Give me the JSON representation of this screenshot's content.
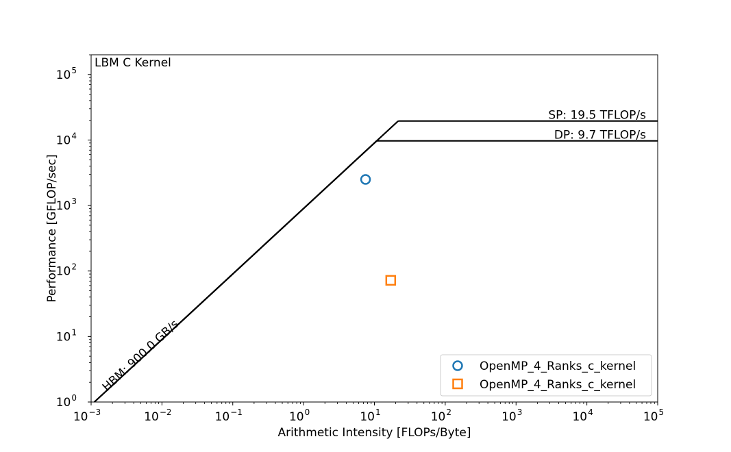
{
  "chart_data": {
    "type": "scatter",
    "title": "",
    "annotation": "LBM C Kernel",
    "xlabel": "Arithmetic Intensity [FLOPs/Byte]",
    "ylabel": "Performance [GFLOP/sec]",
    "xscale": "log",
    "yscale": "log",
    "xlim": [
      0.001,
      100000
    ],
    "ylim": [
      1,
      200000
    ],
    "x_ticks": [
      {
        "base": "10",
        "exp": "−3",
        "value": 0.001
      },
      {
        "base": "10",
        "exp": "−2",
        "value": 0.01
      },
      {
        "base": "10",
        "exp": "−1",
        "value": 0.1
      },
      {
        "base": "10",
        "exp": "0",
        "value": 1
      },
      {
        "base": "10",
        "exp": "1",
        "value": 10
      },
      {
        "base": "10",
        "exp": "2",
        "value": 100
      },
      {
        "base": "10",
        "exp": "3",
        "value": 1000
      },
      {
        "base": "10",
        "exp": "4",
        "value": 10000
      },
      {
        "base": "10",
        "exp": "5",
        "value": 100000
      }
    ],
    "y_ticks": [
      {
        "base": "10",
        "exp": "0",
        "value": 1
      },
      {
        "base": "10",
        "exp": "1",
        "value": 10
      },
      {
        "base": "10",
        "exp": "2",
        "value": 100
      },
      {
        "base": "10",
        "exp": "3",
        "value": 1000
      },
      {
        "base": "10",
        "exp": "4",
        "value": 10000
      },
      {
        "base": "10",
        "exp": "5",
        "value": 100000
      }
    ],
    "roofs": [
      {
        "label": "SP: 19.5 TFLOP/s",
        "peak": 19500,
        "bandwidth": 900
      },
      {
        "label": "DP: 9.7 TFLOP/s",
        "peak": 9700,
        "bandwidth": 900
      }
    ],
    "bandwidth_line": {
      "label": "HBM: 900.0 GB/s",
      "value": 900
    },
    "series": [
      {
        "name": "OpenMP_4_Ranks_c_kernel",
        "marker": "circle",
        "color": "#1f77b4",
        "points": [
          {
            "x": 7.5,
            "y": 2500
          }
        ]
      },
      {
        "name": "OpenMP_4_Ranks_c_kernel",
        "marker": "square",
        "color": "#ff7f0e",
        "points": [
          {
            "x": 17,
            "y": 72
          }
        ]
      }
    ],
    "grid": false,
    "legend_position": "lower-right"
  }
}
